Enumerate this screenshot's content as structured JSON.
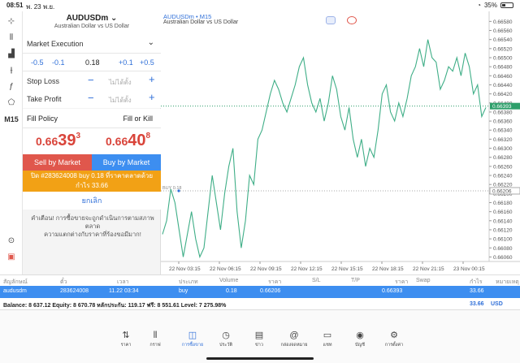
{
  "status": {
    "time": "08:51",
    "date": "พ. 23 พ.ย.",
    "battery": "35%"
  },
  "toolbar": {
    "timeframe": "M15"
  },
  "order": {
    "symbol": "AUDUSDm",
    "symbol_desc": "Australian Dollar vs US Dollar",
    "execution": "Market Execution",
    "volume": {
      "m05": "-0.5",
      "m01": "-0.1",
      "value": "0.18",
      "p01": "+0.1",
      "p05": "+0.5"
    },
    "stop_loss": {
      "label": "Stop Loss",
      "placeholder": "ไม่ได้ตั้ง"
    },
    "take_profit": {
      "label": "Take Profit",
      "placeholder": "ไม่ได้ตั้ง"
    },
    "fill_policy": {
      "label": "Fill Policy",
      "value": "Fill or Kill"
    },
    "sell_price": {
      "a": "0.66",
      "b": "39",
      "c": "3"
    },
    "buy_price": {
      "a": "0.66",
      "b": "40",
      "c": "8"
    },
    "sell_label": "Sell by Market",
    "buy_label": "Buy by Market",
    "notice_line1": "ปิด #283624008 buy 0.18 ที่ราคาตลาดด้วย",
    "notice_line2": "กำไร 33.66",
    "cancel_label": "ยกเลิก",
    "warning_line1": "คำเตือน! การซื้อขายจะถูกดำเนินการตามสภาพตลาด",
    "warning_line2": "ความแตกต่างกับราคาที่ร้องขอมีมาก!"
  },
  "chart_data": {
    "type": "line",
    "title": "AUDUSDm • M15",
    "subtitle": "Australian Dollar vs US Dollar",
    "x_ticks": [
      "22 Nov 03:15",
      "22 Nov 06:15",
      "22 Nov 09:15",
      "22 Nov 12:15",
      "22 Nov 15:15",
      "22 Nov 18:15",
      "22 Nov 21:15",
      "23 Nov 00:15"
    ],
    "y_ticks": [
      "0.66580",
      "0.66560",
      "0.66540",
      "0.66520",
      "0.66500",
      "0.66480",
      "0.66460",
      "0.66440",
      "0.66420",
      "0.66400",
      "0.66380",
      "0.66360",
      "0.66340",
      "0.66320",
      "0.66300",
      "0.66280",
      "0.66260",
      "0.66240",
      "0.66220",
      "0.66200",
      "0.66180",
      "0.66160",
      "0.66140",
      "0.66120",
      "0.66100",
      "0.66080",
      "0.66060"
    ],
    "ylim": [
      0.6605,
      0.66595
    ],
    "current_price_label": "0.66393",
    "current_price": 0.66393,
    "entry_price_label": "0.66206",
    "entry_price": 0.66206,
    "entry_marker": "BUY 0.18",
    "series": [
      {
        "values": [
          0.6611,
          0.6614,
          0.6621,
          0.6618,
          0.6612,
          0.6606,
          0.6611,
          0.6616,
          0.661,
          0.6606,
          0.6608,
          0.6616,
          0.6624,
          0.6618,
          0.6612,
          0.662,
          0.6626,
          0.663,
          0.6616,
          0.6608,
          0.6614,
          0.6624,
          0.6622,
          0.6632,
          0.6634,
          0.6638,
          0.6642,
          0.6645,
          0.6643,
          0.664,
          0.6638,
          0.6641,
          0.6644,
          0.6648,
          0.665,
          0.6644,
          0.664,
          0.6638,
          0.6641,
          0.6636,
          0.664,
          0.6646,
          0.6643,
          0.6637,
          0.6634,
          0.6639,
          0.6632,
          0.6628,
          0.6632,
          0.6626,
          0.663,
          0.6628,
          0.6634,
          0.6642,
          0.6644,
          0.6638,
          0.6636,
          0.664,
          0.6637,
          0.6641,
          0.6646,
          0.6648,
          0.6652,
          0.6648,
          0.6654,
          0.665,
          0.6649,
          0.6643,
          0.6645,
          0.6648,
          0.6647,
          0.665,
          0.6646,
          0.6651,
          0.6648,
          0.6642,
          0.6644,
          0.6637,
          0.6639
        ]
      }
    ]
  },
  "positions": {
    "headers": [
      "สัญลักษณ์",
      "ตั๋ว",
      "เวลา",
      "ประเภท",
      "Volume",
      "ราคา",
      "S/L",
      "T/P",
      "ราคา",
      "Swap",
      "กำไร",
      "หมายเหตุ"
    ],
    "rows": [
      {
        "symbol": "audusdm",
        "ticket": "283624008",
        "time": "11.22 03:34",
        "type": "buy",
        "volume": "0.18",
        "price": "0.66206",
        "current": "0.66393",
        "profit": "33.66"
      }
    ],
    "balance": "Balance: 8 637.12 Equity: 8 670.78 หลักประกัน: 119.17 ฟรี: 8 551.61 Level: 7 275.98%",
    "total_profit": "33.66",
    "currency": "USD"
  },
  "tabs": [
    "ราคา",
    "กราฟ",
    "การซื้อขาย",
    "ประวัติ",
    "ข่าว",
    "กล่องจดหมาย",
    "แชท",
    "บัญชี",
    "การตั้งค่า"
  ]
}
